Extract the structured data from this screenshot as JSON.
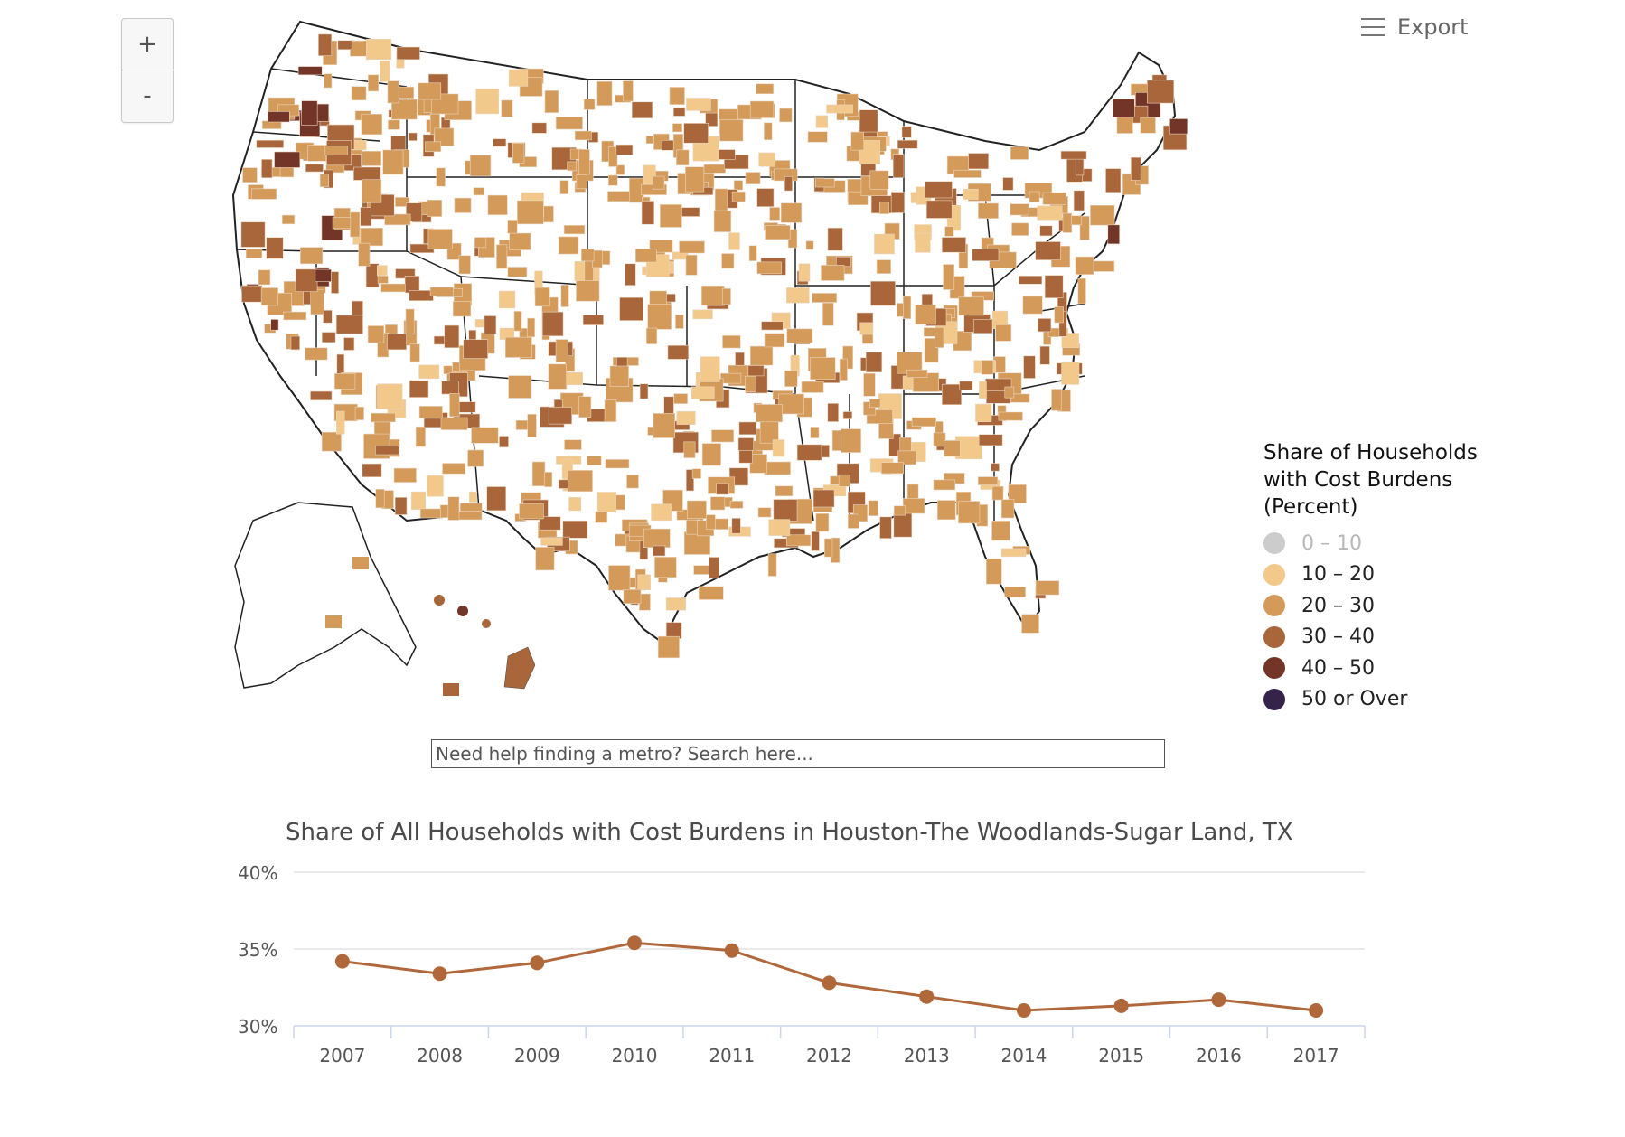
{
  "zoom": {
    "in_label": "+",
    "out_label": "-"
  },
  "export": {
    "label": "Export"
  },
  "legend": {
    "title_lines": [
      "Share of Households",
      "with Cost Burdens",
      "(Percent)"
    ],
    "items": [
      {
        "label": "0 – 10",
        "color": "#cccccc",
        "muted": true
      },
      {
        "label": "10 – 20",
        "color": "#f2c98a",
        "muted": false
      },
      {
        "label": "20 – 30",
        "color": "#d49a59",
        "muted": false
      },
      {
        "label": "30 – 40",
        "color": "#a8663a",
        "muted": false
      },
      {
        "label": "40 – 50",
        "color": "#733528",
        "muted": false
      },
      {
        "label": "50 or Over",
        "color": "#35234a",
        "muted": false
      }
    ]
  },
  "search": {
    "placeholder": "Need help finding a metro? Search here..."
  },
  "chart_data": {
    "type": "line",
    "title": "Share of All Households with Cost Burdens in Houston-The Woodlands-Sugar Land, TX",
    "categories": [
      "2007",
      "2008",
      "2009",
      "2010",
      "2011",
      "2012",
      "2013",
      "2014",
      "2015",
      "2016",
      "2017"
    ],
    "series": [
      {
        "name": "Houston-The Woodlands-Sugar Land, TX",
        "color": "#b0683a",
        "values": [
          34.2,
          33.4,
          34.1,
          35.4,
          34.9,
          32.8,
          31.9,
          31.0,
          31.3,
          31.7,
          31.0
        ]
      }
    ],
    "ylim": [
      30,
      40
    ],
    "yticks": [
      30,
      35,
      40
    ],
    "ytick_labels": [
      "30%",
      "35%",
      "40%"
    ],
    "xlabel": "",
    "ylabel": "",
    "grid": true
  }
}
